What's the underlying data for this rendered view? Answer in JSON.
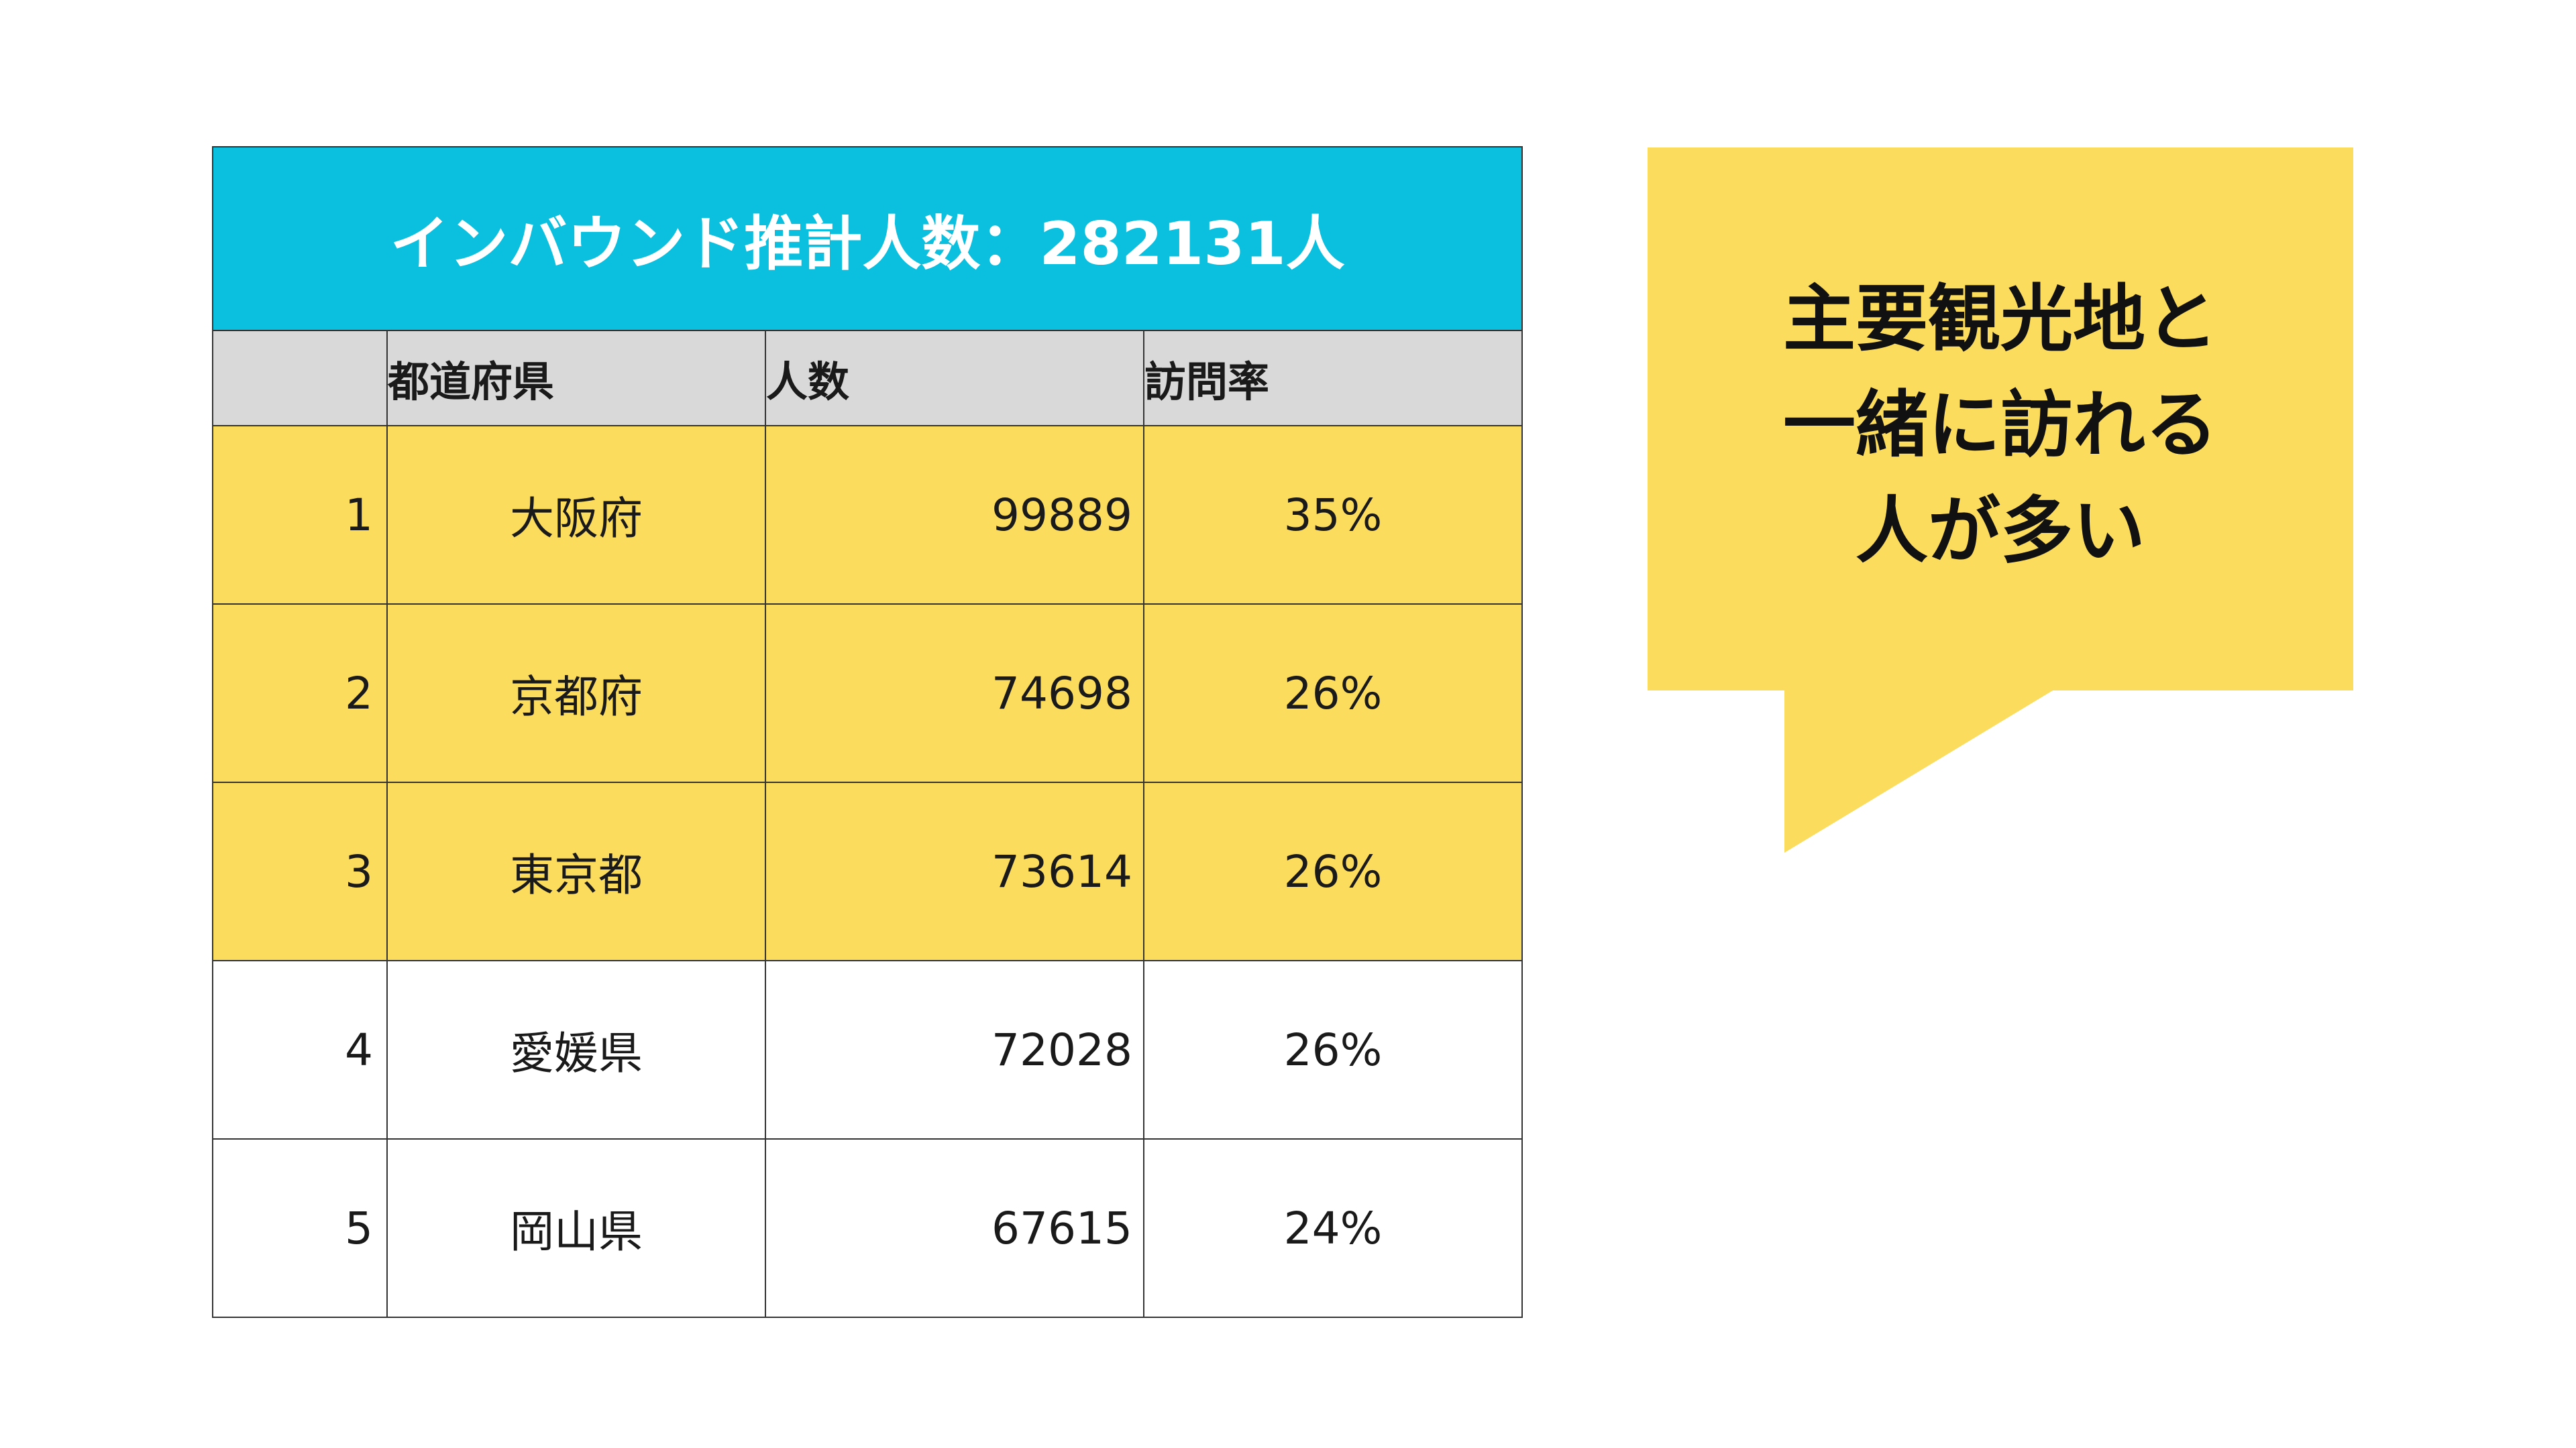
{
  "table": {
    "title": "インバウンド推計人数：282131人",
    "headers": [
      "",
      "都道府県",
      "人数",
      "訪問率"
    ],
    "rows": [
      {
        "rank": "1",
        "prefecture": "大阪府",
        "count": "99889",
        "rate": "35%"
      },
      {
        "rank": "2",
        "prefecture": "京都府",
        "count": "74698",
        "rate": "26%"
      },
      {
        "rank": "3",
        "prefecture": "東京都",
        "count": "73614",
        "rate": "26%"
      },
      {
        "rank": "4",
        "prefecture": "愛媛県",
        "count": "72028",
        "rate": "26%"
      },
      {
        "rank": "5",
        "prefecture": "岡山県",
        "count": "67615",
        "rate": "24%"
      }
    ]
  },
  "callout": {
    "lines": [
      "主要観光地と",
      "一緒に訪れる",
      "人が多い"
    ]
  },
  "colors": {
    "title_bg": "#0bbfdf",
    "header_bg": "#d9d9d9",
    "highlight": "#fcdc5c",
    "bubble": "#fcdc5c"
  }
}
